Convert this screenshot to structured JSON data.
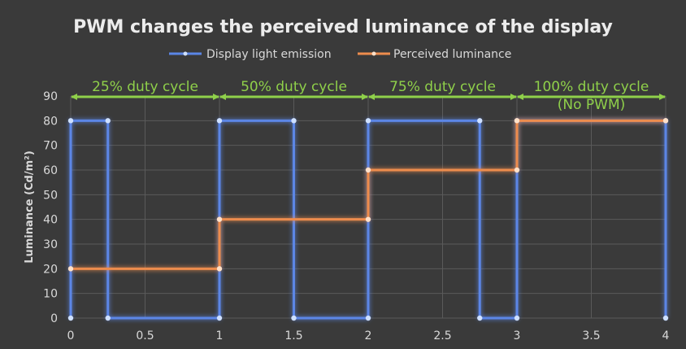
{
  "chart_data": {
    "type": "line",
    "title": "PWM changes the perceived luminance of the display",
    "xlabel": "",
    "ylabel": "Luminance (Cd/m²)",
    "xlim": [
      0,
      4
    ],
    "ylim": [
      0,
      90
    ],
    "x_ticks": [
      "0",
      "0.5",
      "1",
      "1.5",
      "2",
      "2.5",
      "3",
      "3.5",
      "4"
    ],
    "y_ticks": [
      "0",
      "10",
      "20",
      "30",
      "40",
      "50",
      "60",
      "70",
      "80",
      "90"
    ],
    "grid": true,
    "legend_position": "top",
    "series": [
      {
        "name": "Display light emission",
        "color": "#5b86e6",
        "points": [
          [
            0,
            0
          ],
          [
            0,
            80
          ],
          [
            0.25,
            80
          ],
          [
            0.25,
            0
          ],
          [
            1,
            0
          ],
          [
            1,
            80
          ],
          [
            1.5,
            80
          ],
          [
            1.5,
            0
          ],
          [
            2,
            0
          ],
          [
            2,
            80
          ],
          [
            2.75,
            80
          ],
          [
            2.75,
            0
          ],
          [
            3,
            0
          ],
          [
            3,
            80
          ],
          [
            4,
            80
          ],
          [
            4,
            0
          ]
        ]
      },
      {
        "name": "Perceived luminance",
        "color": "#ed8c4d",
        "points": [
          [
            0,
            20
          ],
          [
            1,
            20
          ],
          [
            1,
            40
          ],
          [
            2,
            40
          ],
          [
            2,
            60
          ],
          [
            3,
            60
          ],
          [
            3,
            80
          ],
          [
            4,
            80
          ]
        ]
      }
    ],
    "annotations": [
      {
        "lines": [
          "25% duty cycle"
        ],
        "x_start": 0,
        "x_end": 1
      },
      {
        "lines": [
          "50% duty cycle"
        ],
        "x_start": 1,
        "x_end": 2
      },
      {
        "lines": [
          "75% duty cycle"
        ],
        "x_start": 2,
        "x_end": 3
      },
      {
        "lines": [
          "100% duty cycle",
          "(No PWM)"
        ],
        "x_start": 3,
        "x_end": 4
      }
    ],
    "annotation_color": "#8fd04a"
  }
}
